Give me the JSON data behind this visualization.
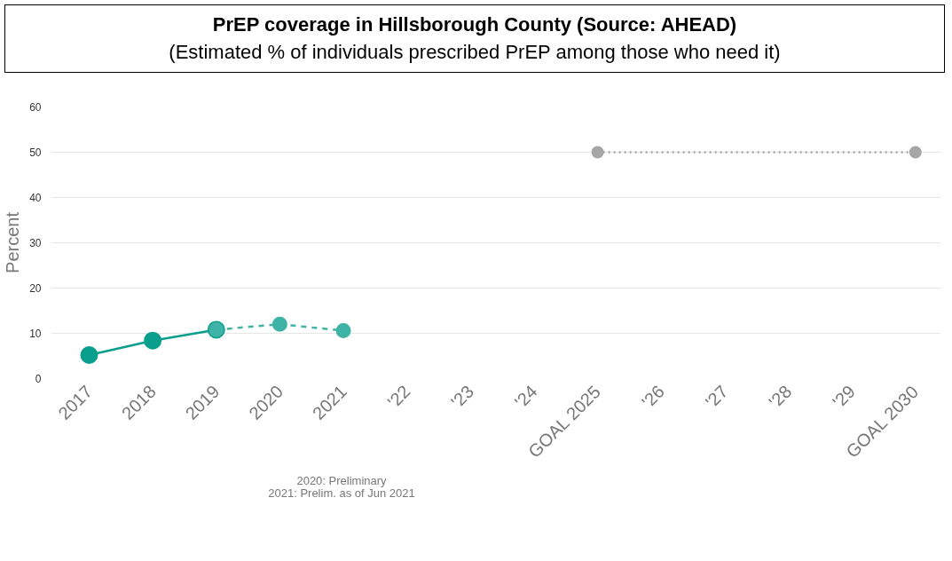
{
  "chart_data": {
    "type": "line",
    "title": "PrEP coverage in Hillsborough County (Source: AHEAD)",
    "subtitle": "(Estimated % of individuals prescribed PrEP among those who need it)",
    "ylabel": "Percent",
    "categories": [
      "2017",
      "2018",
      "2019",
      "2020",
      "2021",
      "'22",
      "'23",
      "'24",
      "GOAL 2025",
      "'26",
      "'27",
      "'28",
      "'29",
      "GOAL 2030"
    ],
    "series": [
      {
        "color": "#0a9e8c",
        "line_style": "solid",
        "marker": "circle",
        "values": [
          5.2,
          8.4,
          10.8,
          null,
          null,
          null,
          null,
          null,
          null,
          null,
          null,
          null,
          null,
          null
        ]
      },
      {
        "color": "#3fb3a5",
        "line_style": "dashed",
        "marker": "circle",
        "values": [
          null,
          null,
          10.8,
          12,
          10.6,
          null,
          null,
          null,
          null,
          null,
          null,
          null,
          null,
          null
        ]
      },
      {
        "color": "#a6a6a6",
        "line_style": "dotted",
        "marker": "circle",
        "values": [
          null,
          null,
          null,
          null,
          null,
          null,
          null,
          null,
          50,
          null,
          null,
          null,
          null,
          50
        ]
      }
    ],
    "ylim": [
      0,
      60
    ],
    "yticks": [
      0,
      10,
      20,
      30,
      40,
      50,
      60
    ],
    "grid": "y",
    "annotations": [
      "2020: Preliminary\n2021: Prelim. as of Jun 2021"
    ]
  }
}
